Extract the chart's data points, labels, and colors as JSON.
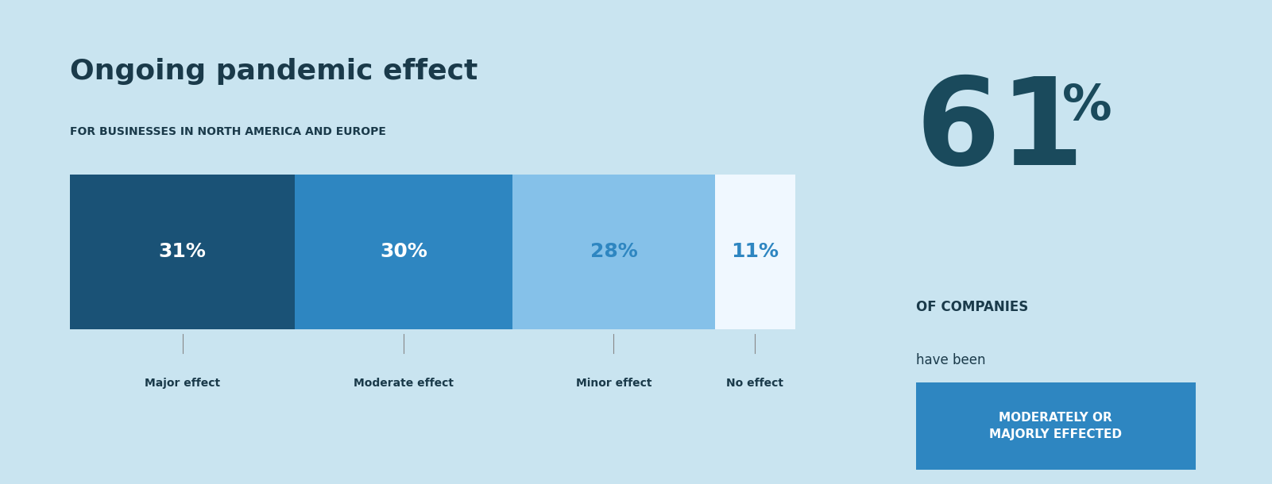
{
  "title": "Ongoing pandemic effect",
  "subtitle": "FOR BUSINESSES IN NORTH AMERICA AND EUROPE",
  "background_color": "#c9e4f0",
  "bar_values": [
    31,
    30,
    28,
    11
  ],
  "bar_labels": [
    "31%",
    "30%",
    "28%",
    "11%"
  ],
  "bar_colors": [
    "#1a5276",
    "#2e86c1",
    "#85c1e9",
    "#f0f8ff"
  ],
  "bar_text_colors": [
    "#ffffff",
    "#ffffff",
    "#2e86c1",
    "#2e86c1"
  ],
  "categories": [
    "Major effect",
    "Moderate effect",
    "Minor effect",
    "No effect"
  ],
  "big_number": "61",
  "big_number_suffix": "%",
  "of_companies_text": "OF COMPANIES",
  "have_been_text": "have been",
  "highlight_text": "MODERATELY OR\nMAJORLY EFFECTED",
  "highlight_bg_color": "#2e86c1",
  "highlight_text_color": "#ffffff",
  "title_color": "#1a3a4a",
  "subtitle_color": "#1a3a4a",
  "big_number_color": "#1a4a5c",
  "category_label_color": "#1a3a4a",
  "of_companies_color": "#1a3a4a",
  "have_been_color": "#1a3a4a"
}
